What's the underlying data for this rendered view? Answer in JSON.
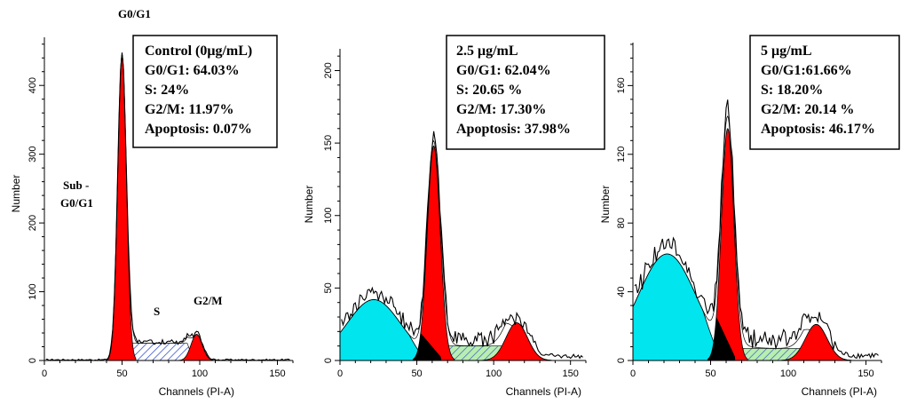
{
  "chart_data": [
    {
      "type": "area",
      "xlabel": "Channels (PI-A)",
      "ylabel": "Number",
      "xlim": [
        0,
        160
      ],
      "ylim": [
        0,
        470
      ],
      "xticks": [
        0,
        50,
        100,
        150
      ],
      "yticks": [
        0,
        100,
        200,
        300,
        400
      ],
      "grid": false,
      "annotations": [
        {
          "text": "G0/G1"
        },
        {
          "text": "Sub -"
        },
        {
          "text": "G0/G1"
        },
        {
          "text": "S"
        },
        {
          "text": "G2/M"
        }
      ],
      "info_box": [
        "Control (0μg/mL)",
        "G0/G1: 64.03%",
        "S: 24%",
        "G2/M: 11.97%",
        "Apoptosis: 0.07%"
      ],
      "peaks": {
        "g0g1": {
          "center": 50,
          "sigma": 2.8,
          "height": 445
        },
        "g2m": {
          "center": 98,
          "sigma": 3.6,
          "height": 38
        },
        "s_level": 25,
        "s_range": [
          52,
          96
        ],
        "apoptosis_height": 0,
        "apoptosis_width": 14
      },
      "histogram_noise": 6
    },
    {
      "type": "area",
      "xlabel": "Channels (PI-A)",
      "ylabel": "Number",
      "xlim": [
        0,
        160
      ],
      "ylim": [
        0,
        215
      ],
      "xticks": [
        0,
        50,
        100,
        150
      ],
      "yticks": [
        0,
        50,
        100,
        150,
        200
      ],
      "grid": false,
      "info_box": [
        "2.5 μg/mL",
        "G0/G1: 62.04%",
        "S: 20.65 %",
        "G2/M: 17.30%",
        "Apoptosis: 37.98%"
      ],
      "peaks": {
        "g0g1": {
          "center": 61,
          "sigma": 4.2,
          "height": 148
        },
        "g2m": {
          "center": 115,
          "sigma": 7,
          "height": 26
        },
        "s_level": 10,
        "s_range": [
          63,
          112
        ],
        "apoptosis_height": 42,
        "apoptosis_width": 28
      },
      "histogram_noise": 9
    },
    {
      "type": "area",
      "xlabel": "Channels (PI-A)",
      "ylabel": "Number",
      "xlim": [
        0,
        160
      ],
      "ylim": [
        0,
        185
      ],
      "xticks": [
        0,
        50,
        100,
        150
      ],
      "yticks": [
        0,
        40,
        80,
        120,
        160
      ],
      "grid": false,
      "info_box": [
        "5 μg/mL",
        "G0/G1:61.66%",
        "S: 18.20%",
        "G2/M: 20.14 %",
        "Apoptosis: 46.17%"
      ],
      "peaks": {
        "g0g1": {
          "center": 61,
          "sigma": 4.0,
          "height": 135
        },
        "g2m": {
          "center": 118,
          "sigma": 7,
          "height": 21
        },
        "s_level": 7,
        "s_range": [
          63,
          114
        ],
        "apoptosis_height": 62,
        "apoptosis_width": 30
      },
      "histogram_noise": 10
    }
  ],
  "colors": {
    "g0g1": "#ff0000",
    "g2m": "#ff0000",
    "apoptosis": "#00e5ee",
    "s_phase": "#a8e6a0",
    "s_hatch": "#1e40c8",
    "overlap": "#000000",
    "outline": "#000000"
  }
}
